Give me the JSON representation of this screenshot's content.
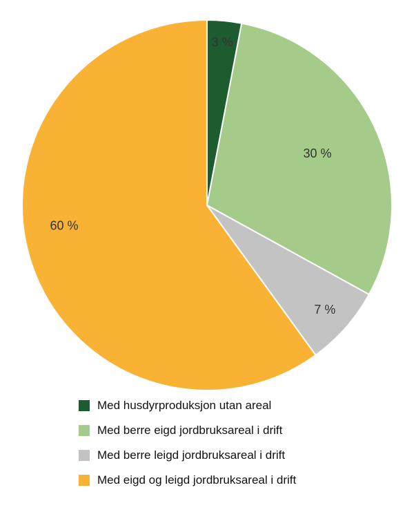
{
  "chart_data": {
    "type": "pie",
    "title": "",
    "unit": "%",
    "value_suffix": " %",
    "direction": "clockwise",
    "start_angle": "12 o'clock",
    "legend_position": "bottom-left",
    "label_color": "#333333",
    "background_color": "#ffffff",
    "slices": [
      {
        "label": "Med husdyrproduksjon utan areal",
        "value": 3,
        "display_value": "3 %",
        "color": "#1d5c2f"
      },
      {
        "label": "Med berre eigd jordbruksareal i drift",
        "value": 30,
        "display_value": "30 %",
        "color": "#a5cb8a"
      },
      {
        "label": "Med berre leigd jordbruksareal i drift",
        "value": 7,
        "display_value": "7 %",
        "color": "#c3c3c3"
      },
      {
        "label": "Med eigd og leigd jordbruksareal i drift",
        "value": 60,
        "display_value": "60 %",
        "color": "#f9b233"
      }
    ]
  }
}
